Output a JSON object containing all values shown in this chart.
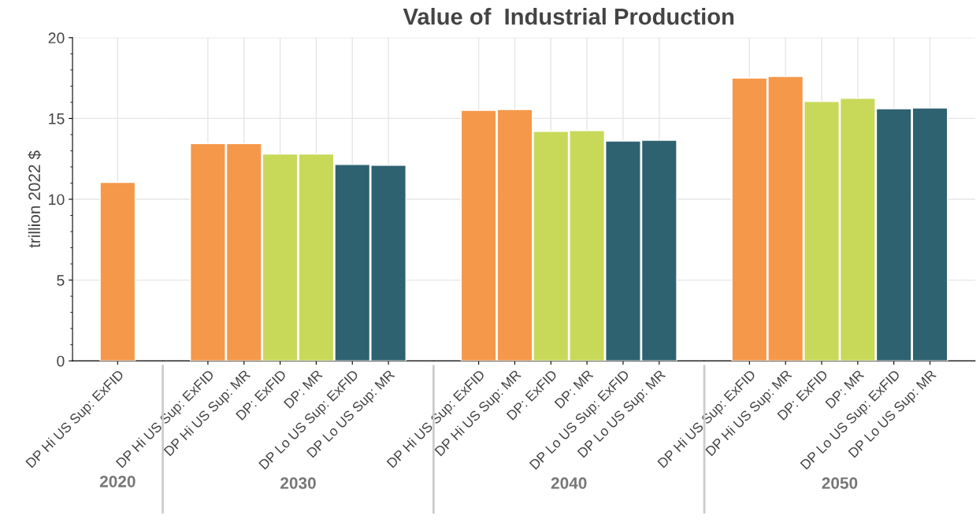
{
  "chart_data": [
    {
      "type": "bar",
      "ylabel": "trillion 2022 $",
      "xlabel": "2020",
      "categories": [
        "DP Hi US Sup: ExFID"
      ],
      "values": [
        11.05
      ],
      "colors": [
        "#f5984a"
      ],
      "ylim": [
        0,
        20
      ],
      "yticks": [
        0,
        5,
        10,
        15,
        20
      ],
      "grid": true
    },
    {
      "type": "bar",
      "xlabel": "2030",
      "categories": [
        "DP Hi US Sup: ExFID",
        "DP Hi US Sup: MR",
        "DP: ExFID",
        "DP: MR",
        "DP Lo US Sup: ExFID",
        "DP Lo US Sup: MR"
      ],
      "values": [
        13.45,
        13.45,
        12.8,
        12.8,
        12.15,
        12.1
      ],
      "colors": [
        "#f5984a",
        "#f5984a",
        "#c8d95a",
        "#c8d95a",
        "#2f6270",
        "#2f6270"
      ],
      "ylim": [
        0,
        20
      ],
      "yticks": [
        0,
        5,
        10,
        15,
        20
      ],
      "grid": true,
      "tick_labels": "x"
    },
    {
      "type": "bar",
      "title": "Value of  Industrial Production",
      "xlabel": "2040",
      "categories": [
        "DP Hi US Sup: ExFID",
        "DP Hi US Sup: MR",
        "DP: ExFID",
        "DP: MR",
        "DP Lo US Sup: ExFID",
        "DP Lo US Sup: MR"
      ],
      "values": [
        15.5,
        15.55,
        14.2,
        14.25,
        13.6,
        13.65
      ],
      "colors": [
        "#f5984a",
        "#f5984a",
        "#c8d95a",
        "#c8d95a",
        "#2f6270",
        "#2f6270"
      ],
      "ylim": [
        0,
        20
      ],
      "yticks": [
        0,
        5,
        10,
        15,
        20
      ],
      "grid": true,
      "tick_labels": "x"
    },
    {
      "type": "bar",
      "xlabel": "2050",
      "categories": [
        "DP Hi US Sup: ExFID",
        "DP Hi US Sup: MR",
        "DP: ExFID",
        "DP: MR",
        "DP Lo US Sup: ExFID",
        "DP Lo US Sup: MR"
      ],
      "values": [
        17.5,
        17.6,
        16.05,
        16.25,
        15.6,
        15.65
      ],
      "colors": [
        "#f5984a",
        "#f5984a",
        "#c8d95a",
        "#c8d95a",
        "#2f6270",
        "#2f6270"
      ],
      "ylim": [
        0,
        20
      ],
      "yticks": [
        0,
        5,
        10,
        15,
        20
      ],
      "grid": true,
      "tick_labels": "x"
    }
  ]
}
